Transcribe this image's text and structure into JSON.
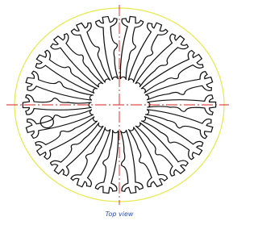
{
  "caption": "Top view"
}
